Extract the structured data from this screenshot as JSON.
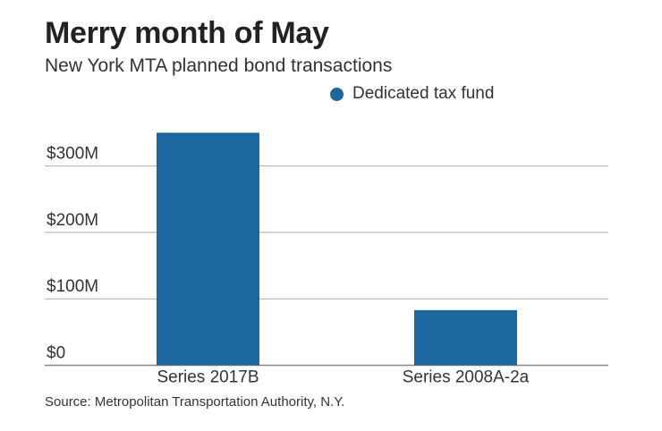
{
  "chart_data": {
    "type": "bar",
    "title": "Merry month of May",
    "subtitle": "New York MTA planned bond transactions",
    "categories": [
      "Series 2017B",
      "Series 2008A-2a"
    ],
    "series": [
      {
        "name": "Dedicated tax fund",
        "values": [
          350,
          83
        ],
        "color": "#1b679e"
      }
    ],
    "yunit": "$ millions",
    "ylim": [
      0,
      350
    ],
    "yticks": [
      0,
      100,
      200,
      300
    ],
    "ytick_labels": [
      "$0",
      "$100M",
      "$200M",
      "$300M"
    ],
    "grid": true,
    "legend": "top-right",
    "source": "Source: Metropolitan Transportation Authority, N.Y."
  }
}
